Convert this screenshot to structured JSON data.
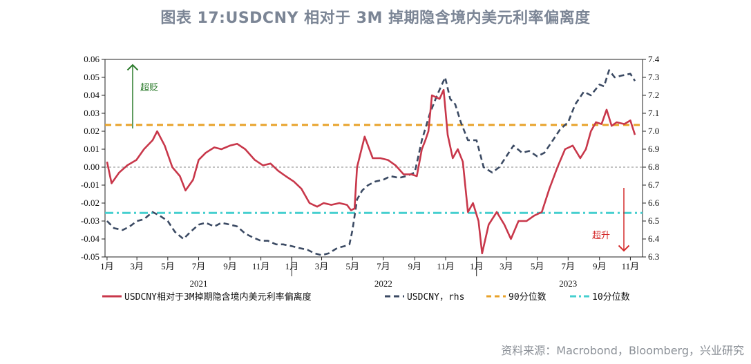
{
  "title": "图表 17:USDCNY 相对于 3M 掉期隐含境内美元利率偏离度",
  "source": "资料来源：Macrobond，Bloomberg，兴业研究",
  "colors": {
    "deviation": "#c8374a",
    "usdcny": "#3b4a63",
    "p90": "#e8a22a",
    "p10": "#45cfcf",
    "zero": "#888888",
    "up_arrow": "#2a7a2a",
    "down_arrow": "#d42a2a"
  },
  "chart_data": {
    "type": "line",
    "x_axis": {
      "month_ticks": [
        "1月",
        "3月",
        "5月",
        "7月",
        "9月",
        "11月",
        "1月",
        "3月",
        "5月",
        "7月",
        "9月",
        "11月",
        "1月",
        "3月",
        "5月",
        "7月",
        "9月",
        "11月"
      ],
      "year_labels": [
        "2021",
        "2022",
        "2023"
      ]
    },
    "left_axis": {
      "ylim": [
        -0.05,
        0.06
      ],
      "ticks": [
        "0.06",
        "0.05",
        "0.04",
        "0.03",
        "0.02",
        "0.01",
        "0.00",
        "-0.01",
        "-0.02",
        "-0.03",
        "-0.04",
        "-0.05"
      ]
    },
    "right_axis": {
      "ylim": [
        6.3,
        7.4
      ],
      "ticks": [
        "7.4",
        "7.3",
        "7.2",
        "7.1",
        "7.0",
        "6.9",
        "6.8",
        "6.7",
        "6.6",
        "6.5",
        "6.4",
        "6.3"
      ]
    },
    "annotations": {
      "up": "超贬",
      "down": "超升"
    },
    "reference_lines": {
      "p90": 0.0235,
      "p10": -0.0255,
      "zero": 0.0
    },
    "series": [
      {
        "name": "USDCNY相对于3M掉期隐含境内美元利率偏离度",
        "axis": "left",
        "style": "solid",
        "x": [
          "2021-01-01",
          "2021-01-10",
          "2021-01-25",
          "2021-02-10",
          "2021-02-28",
          "2021-03-15",
          "2021-04-01",
          "2021-04-10",
          "2021-04-25",
          "2021-05-10",
          "2021-05-25",
          "2021-06-05",
          "2021-06-20",
          "2021-07-01",
          "2021-07-15",
          "2021-08-01",
          "2021-08-15",
          "2021-09-01",
          "2021-09-15",
          "2021-10-01",
          "2021-10-20",
          "2021-11-05",
          "2021-11-20",
          "2021-12-05",
          "2021-12-20",
          "2022-01-05",
          "2022-01-20",
          "2022-02-05",
          "2022-02-20",
          "2022-03-05",
          "2022-03-20",
          "2022-04-05",
          "2022-04-20",
          "2022-04-28",
          "2022-05-05",
          "2022-05-10",
          "2022-05-25",
          "2022-06-10",
          "2022-06-25",
          "2022-07-10",
          "2022-07-25",
          "2022-08-10",
          "2022-08-25",
          "2022-09-05",
          "2022-09-15",
          "2022-09-22",
          "2022-09-28",
          "2022-10-05",
          "2022-10-20",
          "2022-10-28",
          "2022-11-05",
          "2022-11-15",
          "2022-11-25",
          "2022-12-05",
          "2022-12-15",
          "2022-12-25",
          "2023-01-05",
          "2023-01-12",
          "2023-01-25",
          "2023-02-10",
          "2023-02-25",
          "2023-03-10",
          "2023-03-25",
          "2023-04-10",
          "2023-04-25",
          "2023-05-10",
          "2023-05-25",
          "2023-06-10",
          "2023-06-25",
          "2023-07-10",
          "2023-07-25",
          "2023-08-05",
          "2023-08-15",
          "2023-08-25",
          "2023-09-05",
          "2023-09-15",
          "2023-09-25",
          "2023-10-05",
          "2023-10-20",
          "2023-11-01",
          "2023-11-10"
        ],
        "values": [
          0.003,
          -0.009,
          -0.003,
          0.001,
          0.004,
          0.01,
          0.015,
          0.02,
          0.012,
          0.0,
          -0.005,
          -0.013,
          -0.007,
          0.004,
          0.008,
          0.011,
          0.01,
          0.012,
          0.013,
          0.01,
          0.004,
          0.001,
          0.002,
          -0.002,
          -0.005,
          -0.008,
          -0.012,
          -0.02,
          -0.022,
          -0.02,
          -0.021,
          -0.02,
          -0.021,
          -0.024,
          -0.023,
          0.0,
          0.017,
          0.005,
          0.005,
          0.004,
          0.001,
          -0.004,
          -0.004,
          -0.005,
          0.01,
          0.015,
          0.02,
          0.04,
          0.038,
          0.043,
          0.018,
          0.005,
          0.01,
          0.003,
          -0.025,
          -0.02,
          -0.03,
          -0.048,
          -0.032,
          -0.025,
          -0.032,
          -0.04,
          -0.03,
          -0.03,
          -0.027,
          -0.025,
          -0.012,
          0.0,
          0.01,
          0.012,
          0.005,
          0.01,
          0.02,
          0.025,
          0.024,
          0.032,
          0.023,
          0.025,
          0.024,
          0.026,
          0.018
        ]
      },
      {
        "name": "USDCNY，rhs",
        "axis": "right",
        "style": "dashed",
        "x": [
          "2021-01-01",
          "2021-01-15",
          "2021-02-01",
          "2021-02-15",
          "2021-03-01",
          "2021-03-15",
          "2021-04-01",
          "2021-04-15",
          "2021-05-01",
          "2021-05-15",
          "2021-06-01",
          "2021-06-15",
          "2021-07-01",
          "2021-07-15",
          "2021-08-01",
          "2021-08-15",
          "2021-09-01",
          "2021-09-15",
          "2021-10-01",
          "2021-10-15",
          "2021-11-01",
          "2021-11-15",
          "2021-12-01",
          "2021-12-15",
          "2022-01-01",
          "2022-01-15",
          "2022-02-01",
          "2022-02-15",
          "2022-03-01",
          "2022-03-15",
          "2022-04-01",
          "2022-04-15",
          "2022-04-25",
          "2022-05-01",
          "2022-05-10",
          "2022-05-20",
          "2022-06-01",
          "2022-06-15",
          "2022-07-01",
          "2022-07-15",
          "2022-08-01",
          "2022-08-15",
          "2022-09-01",
          "2022-09-15",
          "2022-10-01",
          "2022-10-15",
          "2022-10-31",
          "2022-11-10",
          "2022-11-20",
          "2022-12-01",
          "2022-12-15",
          "2023-01-01",
          "2023-01-15",
          "2023-02-01",
          "2023-02-15",
          "2023-03-01",
          "2023-03-15",
          "2023-04-01",
          "2023-04-15",
          "2023-05-01",
          "2023-05-15",
          "2023-06-01",
          "2023-06-15",
          "2023-07-01",
          "2023-07-15",
          "2023-08-01",
          "2023-08-15",
          "2023-09-01",
          "2023-09-10",
          "2023-09-20",
          "2023-10-01",
          "2023-10-15",
          "2023-11-01",
          "2023-11-10"
        ],
        "values": [
          6.5,
          6.46,
          6.45,
          6.47,
          6.5,
          6.51,
          6.55,
          6.53,
          6.5,
          6.44,
          6.4,
          6.44,
          6.48,
          6.49,
          6.47,
          6.49,
          6.48,
          6.47,
          6.43,
          6.41,
          6.39,
          6.39,
          6.37,
          6.37,
          6.36,
          6.35,
          6.34,
          6.32,
          6.31,
          6.32,
          6.35,
          6.36,
          6.37,
          6.45,
          6.62,
          6.67,
          6.7,
          6.72,
          6.73,
          6.75,
          6.74,
          6.75,
          6.77,
          6.95,
          7.1,
          7.2,
          7.3,
          7.18,
          7.15,
          7.05,
          6.95,
          6.95,
          6.8,
          6.77,
          6.8,
          6.86,
          6.92,
          6.88,
          6.89,
          6.86,
          6.88,
          6.95,
          7.01,
          7.05,
          7.15,
          7.22,
          7.2,
          7.26,
          7.25,
          7.34,
          7.3,
          7.31,
          7.32,
          7.28
        ]
      },
      {
        "name": "90分位数",
        "axis": "left",
        "style": "dashed-reference"
      },
      {
        "name": "10分位数",
        "axis": "left",
        "style": "dashdot-reference"
      }
    ]
  }
}
